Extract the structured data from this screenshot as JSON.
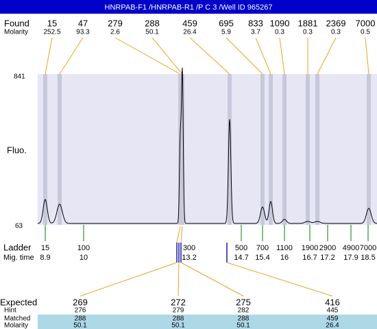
{
  "title": "HNRPAB-F1 /HNRPAB-R1 /P C 3 /Well ID 965267",
  "found": {
    "label": "Found",
    "values": [
      15,
      47,
      279,
      288,
      459,
      695,
      833,
      1090,
      1881,
      2369,
      7000
    ]
  },
  "molarity": {
    "label": "Molarity",
    "values": [
      252.5,
      93.3,
      2.6,
      50.1,
      26.4,
      5.9,
      3.7,
      0.3,
      0.3,
      0.3,
      0.5
    ]
  },
  "y_axis": {
    "label": "Fluo.",
    "top": 841,
    "bottom": 63
  },
  "ladder": {
    "label": "Ladder",
    "values": [
      15,
      100,
      300,
      500,
      700,
      1100,
      1900,
      2900,
      4900,
      7000
    ]
  },
  "mig_time": {
    "label": "Mig. time",
    "values": [
      8.9,
      10,
      13.2,
      14.7,
      15.4,
      16,
      16.7,
      17.2,
      17.9,
      18.5
    ]
  },
  "expected_table": {
    "row_labels": [
      "Expected",
      "Hint",
      "Matched",
      "Molarity"
    ],
    "rows": [
      [
        269,
        272,
        275,
        416
      ],
      [
        276,
        279,
        282,
        445
      ],
      [
        288,
        288,
        288,
        459
      ],
      [
        50.1,
        50.1,
        50.1,
        26.4
      ]
    ]
  }
}
